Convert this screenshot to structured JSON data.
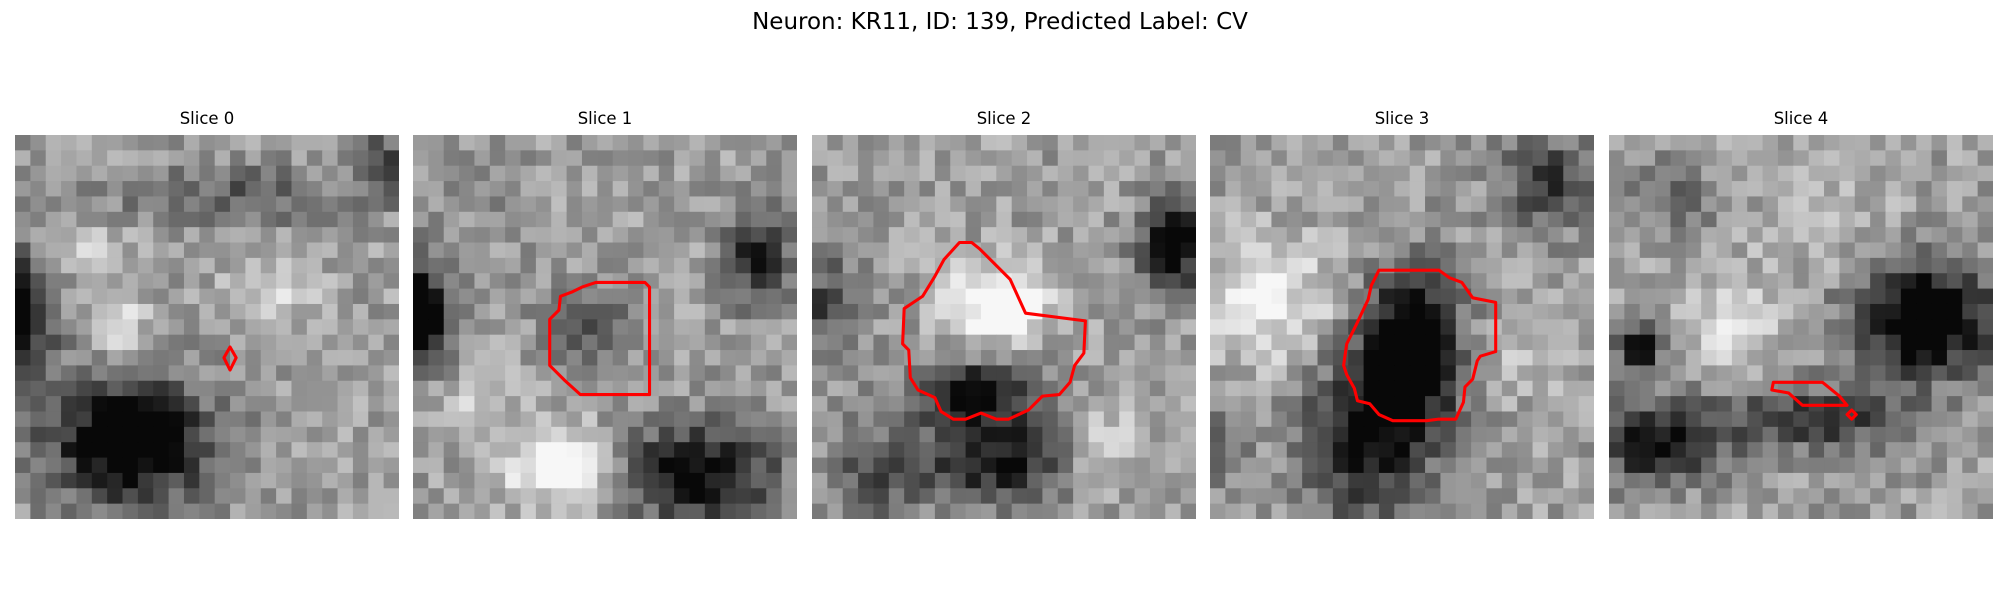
{
  "figure": {
    "title": "Neuron: KR11, ID: 139, Predicted Label: CV"
  },
  "slices": [
    {
      "title": "Slice 0"
    },
    {
      "title": "Slice 1"
    },
    {
      "title": "Slice 2"
    },
    {
      "title": "Slice 3"
    },
    {
      "title": "Slice 4"
    }
  ],
  "colors": {
    "contour": "#ff0000",
    "background": "#ffffff"
  }
}
